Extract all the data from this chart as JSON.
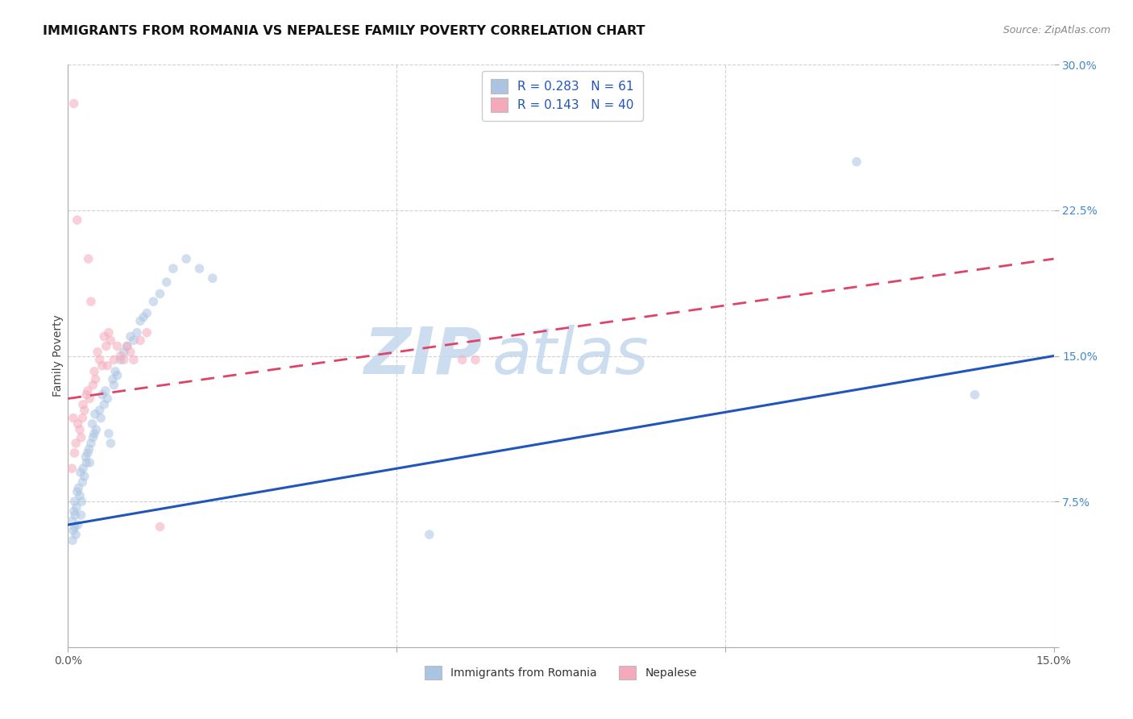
{
  "title": "IMMIGRANTS FROM ROMANIA VS NEPALESE FAMILY POVERTY CORRELATION CHART",
  "source": "Source: ZipAtlas.com",
  "xlabel_romania": "Immigrants from Romania",
  "xlabel_nepalese": "Nepalese",
  "ylabel": "Family Poverty",
  "xlim": [
    0,
    0.15
  ],
  "ylim": [
    0,
    0.3
  ],
  "romania_color": "#aac4e2",
  "nepalese_color": "#f5aabb",
  "romania_line_color": "#2255bb",
  "nepalese_line_color": "#dd4466",
  "R_romania": 0.283,
  "N_romania": 61,
  "R_nepalese": 0.143,
  "N_nepalese": 40,
  "romania_x": [
    0.0008,
    0.001,
    0.0012,
    0.0006,
    0.0015,
    0.0009,
    0.0011,
    0.0007,
    0.0013,
    0.001,
    0.0018,
    0.0014,
    0.0016,
    0.002,
    0.0022,
    0.0019,
    0.0025,
    0.0023,
    0.0028,
    0.0021,
    0.003,
    0.0027,
    0.0032,
    0.0035,
    0.0038,
    0.0033,
    0.004,
    0.0037,
    0.0043,
    0.0041,
    0.005,
    0.0048,
    0.0055,
    0.0052,
    0.006,
    0.0057,
    0.0065,
    0.0062,
    0.007,
    0.0068,
    0.0075,
    0.0072,
    0.008,
    0.0085,
    0.009,
    0.0095,
    0.01,
    0.0105,
    0.011,
    0.0115,
    0.012,
    0.013,
    0.014,
    0.015,
    0.016,
    0.018,
    0.02,
    0.022,
    0.055,
    0.12,
    0.138
  ],
  "romania_y": [
    0.06,
    0.062,
    0.058,
    0.065,
    0.063,
    0.07,
    0.068,
    0.055,
    0.072,
    0.075,
    0.078,
    0.08,
    0.082,
    0.068,
    0.085,
    0.09,
    0.088,
    0.092,
    0.095,
    0.075,
    0.1,
    0.098,
    0.102,
    0.105,
    0.108,
    0.095,
    0.11,
    0.115,
    0.112,
    0.12,
    0.118,
    0.122,
    0.125,
    0.13,
    0.128,
    0.132,
    0.105,
    0.11,
    0.135,
    0.138,
    0.14,
    0.142,
    0.148,
    0.152,
    0.155,
    0.16,
    0.158,
    0.162,
    0.168,
    0.17,
    0.172,
    0.178,
    0.182,
    0.188,
    0.195,
    0.2,
    0.195,
    0.19,
    0.058,
    0.25,
    0.13
  ],
  "nepalese_x": [
    0.0006,
    0.0008,
    0.001,
    0.0012,
    0.0009,
    0.0015,
    0.0018,
    0.0014,
    0.002,
    0.0022,
    0.0025,
    0.0023,
    0.0028,
    0.003,
    0.0033,
    0.0031,
    0.0038,
    0.0035,
    0.0042,
    0.004,
    0.0048,
    0.0045,
    0.0052,
    0.0058,
    0.0055,
    0.006,
    0.0065,
    0.0062,
    0.007,
    0.0075,
    0.008,
    0.0085,
    0.009,
    0.0095,
    0.01,
    0.011,
    0.012,
    0.014,
    0.06,
    0.062
  ],
  "nepalese_y": [
    0.092,
    0.118,
    0.1,
    0.105,
    0.28,
    0.115,
    0.112,
    0.22,
    0.108,
    0.118,
    0.122,
    0.125,
    0.13,
    0.132,
    0.128,
    0.2,
    0.135,
    0.178,
    0.138,
    0.142,
    0.148,
    0.152,
    0.145,
    0.155,
    0.16,
    0.145,
    0.158,
    0.162,
    0.148,
    0.155,
    0.15,
    0.148,
    0.155,
    0.152,
    0.148,
    0.158,
    0.162,
    0.062,
    0.148,
    0.148
  ],
  "background_color": "#ffffff",
  "grid_color": "#cccccc",
  "marker_size": 70,
  "marker_alpha": 0.55,
  "watermark_text1": "ZIP",
  "watermark_text2": "atlas",
  "watermark_color": "#c5d8ee",
  "watermark_fontsize": 58,
  "title_fontsize": 11.5,
  "legend_fontsize": 11,
  "axis_label_fontsize": 10,
  "romania_line_y0": 0.063,
  "romania_line_y1": 0.15,
  "nepalese_line_y0": 0.128,
  "nepalese_line_y1": 0.2
}
